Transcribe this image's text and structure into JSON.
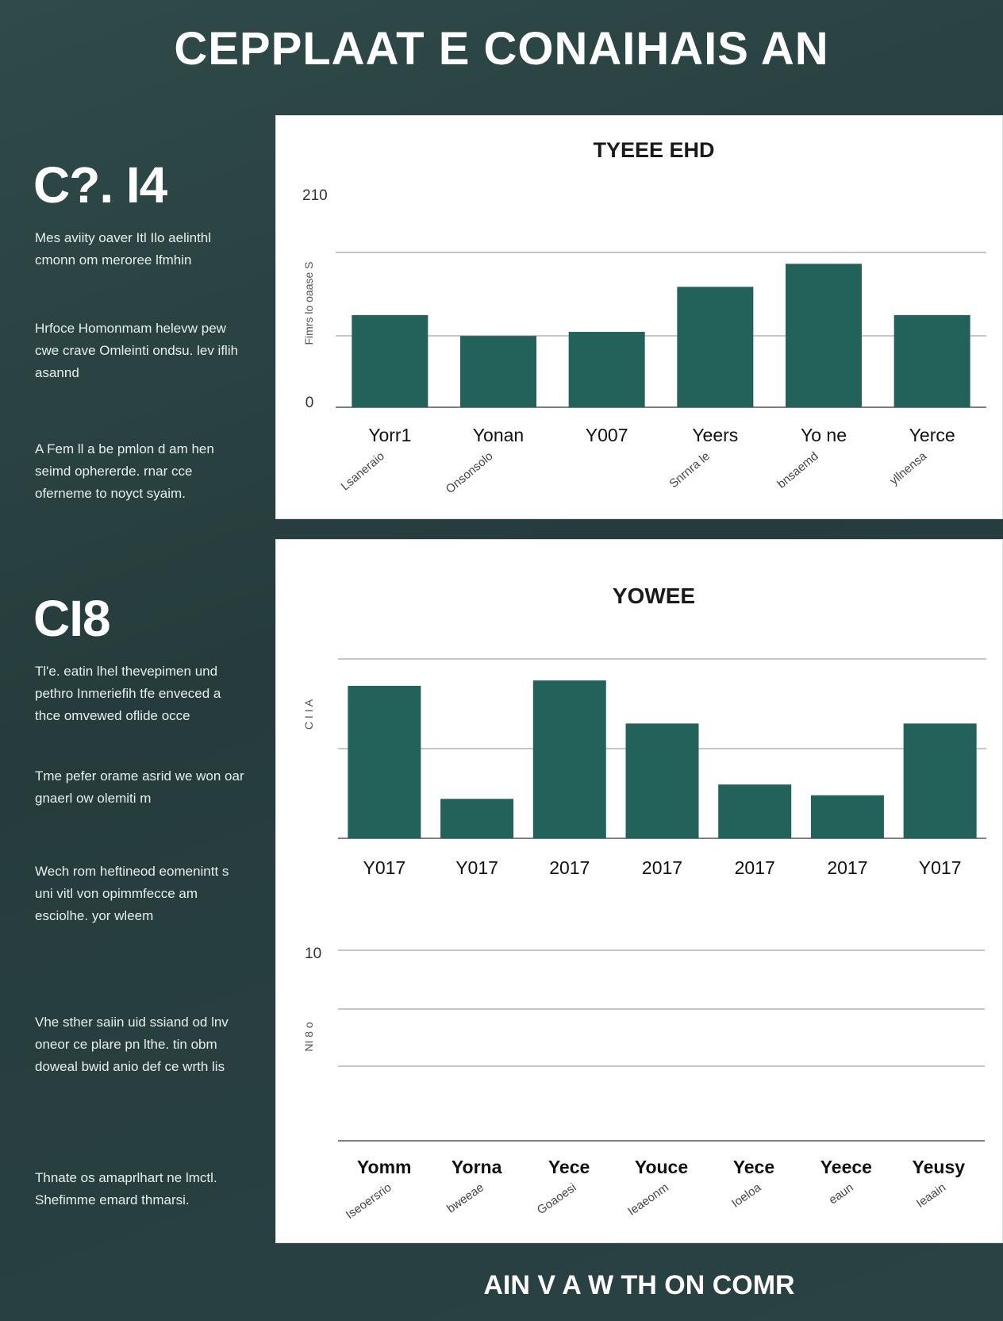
{
  "page": {
    "title": "CEPPLAAT E  CONAIHAIS AN",
    "footer": "AIN V A W TH ON COMR"
  },
  "sidebar": {
    "stat1": "C?. I4",
    "para1": "Mes aviity oaver Itl Ilo aelinthl cmonn om meroree lfmhin",
    "para2": "Hrfoce Homonmam helevw pew cwe crave Omleinti ondsu. lev iflih asannd",
    "para3": "A Fem ll a be pmlon d am hen seimd ophererde. rnar cce oferneme to noyct syaim.",
    "stat2": "CI8",
    "para4": "Tl'e. eatin lhel thevepimen und pethro Inmeriefih tfe enveced a thce omvewed oflide occe",
    "para5": "Tme pefer orame asrid we won oar gnaerl ow olemiti m",
    "para6": "Wech rom heftineod eomenintt s uni vitl von opimmfecce am esciolhe. yor wleem",
    "para7": "Vhe sther saiin uid ssiand od lnv oneor ce plare pn lthe. tin obm doweal bwid anio def ce wrth lis",
    "para8": "Thnate os amaprlhart ne lmctl. Shefimme emard thmarsi."
  },
  "colors": {
    "bar": "#23625a",
    "grid": "#8c8c8c",
    "panel": "#ffffff",
    "bg": "#2b4444"
  },
  "chart_data": [
    {
      "type": "bar",
      "title": "TYEEE EHD",
      "ylabel": "Fimrs lo oaase S",
      "ylim": [
        0,
        210
      ],
      "yticks": [
        "0",
        "210"
      ],
      "categories": [
        "Yorr1",
        "Yonan",
        "Y007",
        "Yeers",
        "Yo ne",
        "Yerce"
      ],
      "sublabels": [
        "Lsaneraio",
        "Onsonsolo",
        "",
        "Snrnra le",
        "bnsaemd",
        "yllnensa"
      ],
      "values": [
        88,
        68,
        72,
        115,
        137,
        88
      ]
    },
    {
      "type": "bar",
      "title": "YOWEE",
      "ylabel": "C I I A",
      "categories": [
        "Y017",
        "Y017",
        "2017",
        "2017",
        "2017",
        "2017",
        "Y017"
      ],
      "values": [
        85,
        22,
        88,
        64,
        30,
        24,
        64
      ]
    },
    {
      "type": "bar",
      "title": "",
      "ylabel": "NI 8 o",
      "yticks": [
        "10"
      ],
      "categories": [
        "Yomm",
        "Yorna",
        "Yece",
        "Youce",
        "Yece",
        "Yeece",
        "Yeusy"
      ],
      "sublabels": [
        "Iseoersrio",
        "bweeae",
        "Goaoesi",
        "Ieaeonm",
        "Ioeloa",
        "eaun",
        "Ieaain"
      ],
      "values": [
        0,
        0,
        0,
        0,
        0,
        0,
        0
      ]
    }
  ]
}
